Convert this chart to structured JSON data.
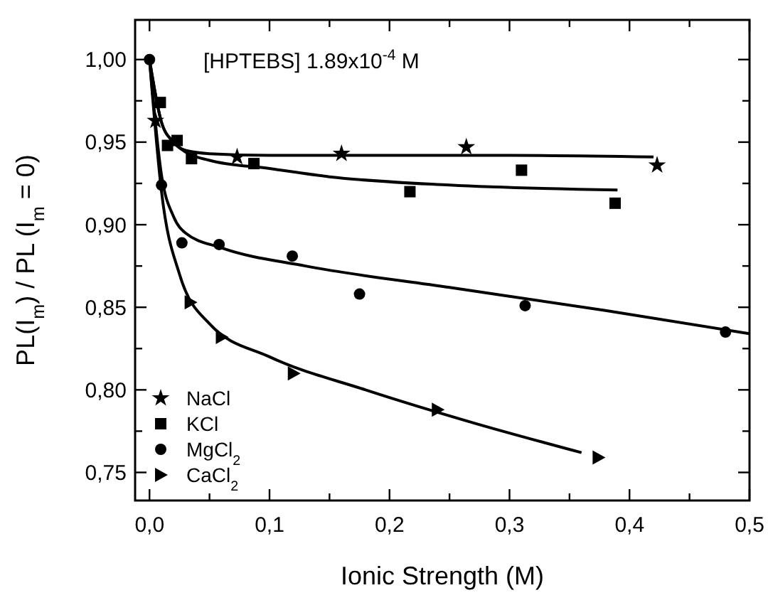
{
  "chart_data": {
    "type": "scatter",
    "xlabel": "Ionic Strength (M)",
    "ylabel": "PL(I$_{m}$) / PL (I$_{m}$ = 0)",
    "annotations": [
      "[HPTEBS] 1.89x10$^{-4}$ M"
    ],
    "xlim": [
      -0.012,
      0.5
    ],
    "ylim": [
      0.733,
      1.024
    ],
    "xticks": [
      {
        "value": 0,
        "label": "0,0"
      },
      {
        "value": 0.05,
        "label": null
      },
      {
        "value": 0.1,
        "label": "0,1"
      },
      {
        "value": 0.15,
        "label": null
      },
      {
        "value": 0.2,
        "label": "0,2"
      },
      {
        "value": 0.25,
        "label": null
      },
      {
        "value": 0.3,
        "label": "0,3"
      },
      {
        "value": 0.35,
        "label": null
      },
      {
        "value": 0.4,
        "label": "0,4"
      },
      {
        "value": 0.45,
        "label": null
      },
      {
        "value": 0.5,
        "label": "0,5"
      }
    ],
    "yticks": [
      {
        "value": 0.75,
        "label": "0,75"
      },
      {
        "value": 0.775,
        "label": null
      },
      {
        "value": 0.8,
        "label": "0,80"
      },
      {
        "value": 0.825,
        "label": null
      },
      {
        "value": 0.85,
        "label": "0,85"
      },
      {
        "value": 0.875,
        "label": null
      },
      {
        "value": 0.9,
        "label": "0,90"
      },
      {
        "value": 0.925,
        "label": null
      },
      {
        "value": 0.95,
        "label": "0,95"
      },
      {
        "value": 0.975,
        "label": null
      },
      {
        "value": 1.0,
        "label": "1,00"
      }
    ],
    "grid": false,
    "legend": "bottom left",
    "series": [
      {
        "name": "NaCl",
        "color": "#000000",
        "marker": "star",
        "x": [
          0.005,
          0.073,
          0.16,
          0.264,
          0.423
        ],
        "values": [
          0.963,
          0.941,
          0.943,
          0.947,
          0.936
        ]
      },
      {
        "name": "KCl",
        "color": "#000000",
        "marker": "square",
        "x": [
          0.009,
          0.015,
          0.023,
          0.035,
          0.087,
          0.217,
          0.31,
          0.388
        ],
        "values": [
          0.974,
          0.948,
          0.951,
          0.94,
          0.937,
          0.92,
          0.933,
          0.913
        ]
      },
      {
        "name": "MgCl$_{2}$",
        "color": "#000000",
        "marker": "circle",
        "x": [
          0,
          0.01,
          0.027,
          0.058,
          0.119,
          0.175,
          0.313,
          0.48
        ],
        "values": [
          1.0,
          0.924,
          0.889,
          0.888,
          0.881,
          0.858,
          0.851,
          0.835
        ]
      },
      {
        "name": "CaCl$_{2}$",
        "color": "#000000",
        "marker": "triangle",
        "x": [
          0.034,
          0.06,
          0.12,
          0.24,
          0.374
        ],
        "values": [
          0.853,
          0.832,
          0.81,
          0.788,
          0.759
        ]
      },
      {
        "type": "line",
        "color": "#000000",
        "marker": "none",
        "x": [
          0,
          0.01,
          0.02,
          0.03,
          0.05,
          0.1,
          0.2,
          0.3,
          0.42
        ],
        "values": [
          1.0,
          0.962,
          0.95,
          0.945,
          0.943,
          0.942,
          0.942,
          0.942,
          0.941
        ]
      },
      {
        "type": "line",
        "color": "#000000",
        "marker": "none",
        "x": [
          0,
          0.01,
          0.02,
          0.03,
          0.05,
          0.1,
          0.15,
          0.25,
          0.39
        ],
        "values": [
          1.0,
          0.962,
          0.95,
          0.944,
          0.939,
          0.934,
          0.929,
          0.924,
          0.921
        ]
      },
      {
        "type": "line",
        "color": "#000000",
        "marker": "none",
        "x": [
          0,
          0.01,
          0.02,
          0.03,
          0.06,
          0.13,
          0.25,
          0.38,
          0.5
        ],
        "values": [
          1.0,
          0.93,
          0.905,
          0.895,
          0.886,
          0.875,
          0.862,
          0.848,
          0.834
        ]
      },
      {
        "type": "line",
        "color": "#000000",
        "marker": "none",
        "x": [
          0,
          0.01,
          0.025,
          0.05,
          0.1,
          0.18,
          0.27,
          0.36
        ],
        "values": [
          1.0,
          0.92,
          0.87,
          0.84,
          0.82,
          0.8,
          0.78,
          0.762
        ]
      }
    ]
  }
}
